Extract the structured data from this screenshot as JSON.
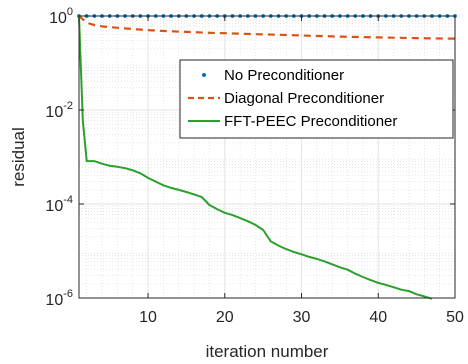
{
  "chart_data": {
    "type": "line",
    "title": "",
    "xlabel": "iteration number",
    "ylabel": "residual",
    "xlim": [
      1,
      50
    ],
    "ylim": [
      1e-06,
      1
    ],
    "yscale": "log",
    "grid": true,
    "minor_grid": true,
    "legend_position": "top-right",
    "x_ticks": [
      10,
      20,
      30,
      40,
      50
    ],
    "x_tick_labels": [
      "10",
      "20",
      "30",
      "40",
      "50"
    ],
    "y_ticks": [
      1e-06,
      0.0001,
      0.01,
      1
    ],
    "y_tick_labels": [
      {
        "base": "10",
        "exp": "-6"
      },
      {
        "base": "10",
        "exp": "-4"
      },
      {
        "base": "10",
        "exp": "-2"
      },
      {
        "base": "10",
        "exp": "0"
      }
    ],
    "series": [
      {
        "name": "No Preconditioner",
        "style": "dots",
        "color": "#0072BD",
        "x": [
          1,
          2,
          3,
          4,
          5,
          6,
          7,
          8,
          9,
          10,
          11,
          12,
          13,
          14,
          15,
          16,
          17,
          18,
          19,
          20,
          21,
          22,
          23,
          24,
          25,
          26,
          27,
          28,
          29,
          30,
          31,
          32,
          33,
          34,
          35,
          36,
          37,
          38,
          39,
          40,
          41,
          42,
          43,
          44,
          45,
          46,
          47,
          48,
          49,
          50
        ],
        "y": [
          1,
          0.999,
          0.999,
          0.999,
          0.999,
          0.999,
          0.999,
          0.999,
          0.999,
          0.999,
          0.999,
          0.999,
          0.999,
          0.999,
          0.999,
          0.999,
          0.999,
          0.999,
          0.999,
          0.999,
          0.999,
          0.999,
          0.999,
          0.999,
          0.999,
          0.999,
          0.999,
          0.999,
          0.999,
          0.999,
          0.999,
          0.999,
          0.999,
          0.999,
          0.999,
          0.999,
          0.999,
          0.999,
          0.999,
          0.999,
          0.999,
          0.999,
          0.999,
          0.999,
          0.999,
          0.999,
          0.999,
          0.999,
          0.999,
          0.999
        ]
      },
      {
        "name": "Diagonal Preconditioner",
        "style": "dashed",
        "color": "#D95319",
        "x": [
          1,
          2,
          3,
          4,
          5,
          6,
          8,
          10,
          12,
          15,
          18,
          20,
          22,
          25,
          28,
          30,
          32,
          35,
          38,
          40,
          42,
          45,
          48,
          50
        ],
        "y": [
          1,
          0.72,
          0.64,
          0.6,
          0.58,
          0.56,
          0.53,
          0.5,
          0.48,
          0.46,
          0.44,
          0.43,
          0.42,
          0.405,
          0.395,
          0.385,
          0.375,
          0.365,
          0.355,
          0.35,
          0.345,
          0.338,
          0.332,
          0.33
        ]
      },
      {
        "name": "FFT-PEEC Preconditioner",
        "style": "solid",
        "color": "#2CA02C",
        "x": [
          1,
          1.5,
          2,
          2.5,
          3,
          4,
          5,
          6,
          7,
          8,
          9,
          10,
          11,
          12,
          13,
          14,
          15,
          16,
          17,
          18,
          19,
          20,
          21,
          22,
          23,
          24,
          25,
          26,
          27,
          28,
          29,
          30,
          31,
          32,
          33,
          34,
          35,
          36,
          37,
          38,
          39,
          40,
          41,
          42,
          43,
          44,
          45,
          46,
          47
        ],
        "y": [
          1,
          0.006,
          0.00082,
          0.00082,
          0.00082,
          0.00072,
          0.00065,
          0.00062,
          0.00058,
          0.00052,
          0.00045,
          0.00036,
          0.0003,
          0.00025,
          0.00022,
          0.0002,
          0.00018,
          0.00016,
          0.00014,
          9.5e-05,
          7.8e-05,
          6.5e-05,
          5.8e-05,
          5e-05,
          4.3e-05,
          3.6e-05,
          2.8e-05,
          1.6e-05,
          1.3e-05,
          1.1e-05,
          9.5e-06,
          8.5e-06,
          7.5e-06,
          6.8e-06,
          6e-06,
          5.2e-06,
          4.5e-06,
          4e-06,
          3.3e-06,
          2.8e-06,
          2.4e-06,
          2.1e-06,
          1.9e-06,
          1.7e-06,
          1.5e-06,
          1.4e-06,
          1.2e-06,
          1.08e-06,
          9.6e-07
        ]
      }
    ]
  }
}
